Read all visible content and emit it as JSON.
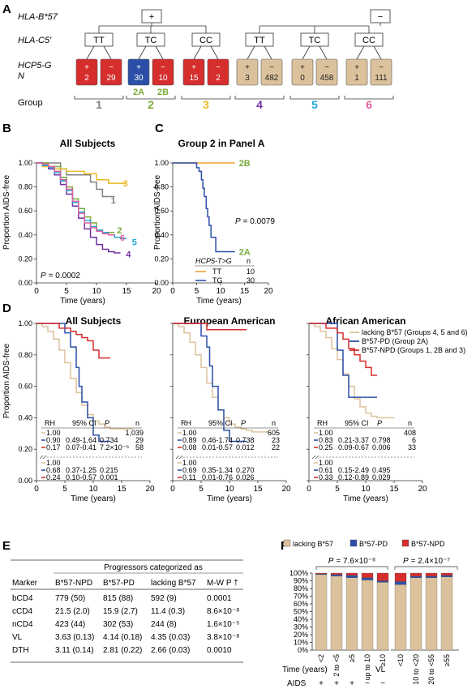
{
  "colors": {
    "red": "#d62d2d",
    "blue": "#2b4fa8",
    "tan": "#dcc29c",
    "gray": "#808080",
    "yellow": "#e8b923",
    "green": "#7aaa3a",
    "purple": "#7030a0",
    "pink": "#e05fa0",
    "cyan": "#20a8d8",
    "orange": "#f0a030"
  },
  "panel_a": {
    "label": "A",
    "hla_b57_label": "HLA-B*57",
    "hla_c5_label": "HLA-C5′",
    "hcp5_label": "HCP5-G",
    "n_label": "N",
    "group_label": "Group",
    "roots": [
      {
        "sign": "+"
      },
      {
        "sign": "−"
      }
    ],
    "c5": [
      "TT",
      "TC",
      "CC",
      "TT",
      "TC",
      "CC"
    ],
    "leaves": [
      {
        "sign": "+",
        "n": "2",
        "c": "red"
      },
      {
        "sign": "−",
        "n": "29",
        "c": "red"
      },
      {
        "sign": "+",
        "n": "30",
        "c": "blue"
      },
      {
        "sign": "−",
        "n": "10",
        "c": "red"
      },
      {
        "sign": "+",
        "n": "15",
        "c": "red"
      },
      {
        "sign": "−",
        "n": "2",
        "c": "red"
      },
      {
        "sign": "+",
        "n": "3",
        "c": "tan"
      },
      {
        "sign": "−",
        "n": "482",
        "c": "tan"
      },
      {
        "sign": "+",
        "n": "0",
        "c": "tan"
      },
      {
        "sign": "−",
        "n": "458",
        "c": "tan"
      },
      {
        "sign": "+",
        "n": "1",
        "c": "tan"
      },
      {
        "sign": "−",
        "n": "111",
        "c": "tan"
      }
    ],
    "sub2a": "2A",
    "sub2b": "2B",
    "groups": [
      {
        "n": "1",
        "c": "gray"
      },
      {
        "n": "2",
        "c": "green"
      },
      {
        "n": "3",
        "c": "yellow"
      },
      {
        "n": "4",
        "c": "purple"
      },
      {
        "n": "5",
        "c": "cyan"
      },
      {
        "n": "6",
        "c": "pink"
      }
    ]
  },
  "panel_b": {
    "label": "B",
    "title": "All Subjects",
    "ylabel": "Proportion AIDS-free",
    "xlabel": "Time (years)",
    "pval_label": "P",
    "pval_value": "= 0.0002",
    "xticks": [
      "0",
      "5",
      "10",
      "15",
      "20"
    ],
    "yticks": [
      "0.00",
      "0.20",
      "0.40",
      "0.60",
      "0.80",
      "1.00"
    ],
    "line_labels": [
      {
        "text": "3",
        "c": "yellow"
      },
      {
        "text": "1",
        "c": "gray"
      },
      {
        "text": "2",
        "c": "green"
      },
      {
        "text": "6",
        "c": "pink"
      },
      {
        "text": "5",
        "c": "cyan"
      },
      {
        "text": "4",
        "c": "purple"
      }
    ]
  },
  "panel_c": {
    "label": "C",
    "title": "Group 2 in Panel A",
    "ylabel": "Proportion AIDS-free",
    "xlabel": "Time (years)",
    "pval_label": "P",
    "pval_value": "= 0.0079",
    "xticks": [
      "0",
      "5",
      "10",
      "15",
      "20"
    ],
    "yticks": [
      "0.00",
      "0.20",
      "0.40",
      "0.60",
      "0.80",
      "1.00"
    ],
    "line_labels": [
      {
        "text": "2B",
        "c": "green"
      },
      {
        "text": "2A",
        "c": "green"
      }
    ],
    "legend_header": "HCP5-T>G",
    "legend_n": "n",
    "legend": [
      {
        "geno": "TT",
        "n": "10",
        "c": "orange"
      },
      {
        "geno": "TG",
        "n": "30",
        "c": "blue"
      }
    ]
  },
  "panel_d": {
    "label": "D",
    "ylabel": "Proportion AIDS-free",
    "xlabel": "Time (years)",
    "xticks": [
      "0",
      "5",
      "10",
      "15",
      "20"
    ],
    "yticks": [
      "0.00",
      "0.20",
      "0.40",
      "0.60",
      "0.80",
      "1.00"
    ],
    "legend": [
      {
        "text": "lacking B*57 (Groups 4, 5 and 6)",
        "c": "tan"
      },
      {
        "text": "B*57-PD (Group 2A)",
        "c": "blue"
      },
      {
        "text": "B*57-NPD (Groups 1, 2B and 3)",
        "c": "red"
      }
    ],
    "headers": [
      "RH",
      "95% CI",
      "P",
      "n"
    ],
    "subplots": [
      {
        "title": "All Subjects",
        "top": [
          {
            "rh": "1.00",
            "ci": "",
            "p": "",
            "n": "1,039"
          },
          {
            "rh": "0.90",
            "ci": "0.49-1.64",
            "p": "0.734",
            "n": "29"
          },
          {
            "rh": "0.17",
            "ci": "0.07-0.41",
            "p": "7.2×10⁻⁵",
            "n": "58"
          }
        ],
        "bot": [
          {
            "rh": "1.00",
            "ci": "",
            "p": ""
          },
          {
            "rh": "0.68",
            "ci": "0.37-1.25",
            "p": "0.215"
          },
          {
            "rh": "0.24",
            "ci": "0.10-0.57",
            "p": "0.001"
          }
        ]
      },
      {
        "title": "European American",
        "top": [
          {
            "rh": "1.00",
            "ci": "",
            "p": "",
            "n": "605"
          },
          {
            "rh": "0.89",
            "ci": "0.46-1.74",
            "p": "0.738",
            "n": "23"
          },
          {
            "rh": "0.08",
            "ci": "0.01-0.57",
            "p": "0.012",
            "n": "22"
          }
        ],
        "bot": [
          {
            "rh": "1.00",
            "ci": "",
            "p": ""
          },
          {
            "rh": "0.69",
            "ci": "0.35-1.34",
            "p": "0.270"
          },
          {
            "rh": "0.11",
            "ci": "0.01-0.76",
            "p": "0.026"
          }
        ]
      },
      {
        "title": "African American",
        "top": [
          {
            "rh": "1.00",
            "ci": "",
            "p": "",
            "n": "408"
          },
          {
            "rh": "0.83",
            "ci": "0.21-3.37",
            "p": "0.798",
            "n": "6"
          },
          {
            "rh": "0.25",
            "ci": "0.09-0.67",
            "p": "0.006",
            "n": "33"
          }
        ],
        "bot": [
          {
            "rh": "1.00",
            "ci": "",
            "p": ""
          },
          {
            "rh": "0.61",
            "ci": "0.15-2.49",
            "p": "0.495"
          },
          {
            "rh": "0.33",
            "ci": "0.12-0.89",
            "p": "0.029"
          }
        ]
      }
    ]
  },
  "panel_e": {
    "label": "E",
    "super_header": "Progressors categorized as",
    "headers": [
      "Marker",
      "B*57-NPD",
      "B*57-PD",
      "lacking B*57",
      "M-W P †"
    ],
    "rows": [
      [
        "bCD4",
        "779 (50)",
        "815 (88)",
        "592 (9)",
        "0.0001"
      ],
      [
        "cCD4",
        "21.5 (2.0)",
        "15.9 (2.7)",
        "11.4 (0.3)",
        "8.6×10⁻⁸"
      ],
      [
        "nCD4",
        "423 (44)",
        "302 (53)",
        "244 (8)",
        "1.6×10⁻⁵"
      ],
      [
        "VL",
        "3.63 (0.13)",
        "4.14 (0.18)",
        "4.35 (0.03)",
        "3.8×10⁻⁸"
      ],
      [
        "DTH",
        "3.11 (0.14)",
        "2.81 (0.22)",
        "2.66 (0.03)",
        "0.0010"
      ]
    ]
  },
  "panel_f": {
    "label": "F",
    "legend": [
      {
        "text": "lacking B*57",
        "c": "tan"
      },
      {
        "text": "B*57-PD",
        "c": "blue"
      },
      {
        "text": "B*57-NPD",
        "c": "red"
      }
    ],
    "p_left_label": "P",
    "p_left_value": "= 7.6×10⁻⁶",
    "p_right_label": "P",
    "p_right_value": "= 2.4×10⁻⁷",
    "yticks": [
      "0%",
      "10%",
      "20%",
      "30%",
      "40%",
      "50%",
      "60%",
      "70%",
      "80%",
      "90%",
      "100%"
    ],
    "time_label": "Time (years)",
    "vl_label": "VL",
    "aids_label": "AIDS",
    "left_groups": [
      {
        "cat": "<2",
        "aids": "+",
        "lacking": 98.0,
        "pd": 1.0,
        "npd": 1.0
      },
      {
        "cat": "2 to <5",
        "aids": "+",
        "lacking": 96.0,
        "pd": 2.0,
        "npd": 2.0
      },
      {
        "cat": "≥5",
        "aids": "+",
        "lacking": 94.0,
        "pd": 3.0,
        "npd": 3.0
      },
      {
        "cat": "up to 10",
        "aids": "−",
        "lacking": 91.0,
        "pd": 3.0,
        "npd": 6.0
      },
      {
        "cat": "≥10",
        "aids": "−",
        "lacking": 88.0,
        "pd": 2.0,
        "npd": 10.0
      }
    ],
    "right_groups": [
      {
        "cat": "<10",
        "lacking": 85.0,
        "pd": 4.0,
        "npd": 11.0
      },
      {
        "cat": "10 to <20",
        "lacking": 94.0,
        "pd": 2.0,
        "npd": 4.0
      },
      {
        "cat": "20 to <55",
        "lacking": 94.0,
        "pd": 2.0,
        "npd": 4.0
      },
      {
        "cat": "≥55",
        "lacking": 95.0,
        "pd": 2.0,
        "npd": 3.0
      }
    ]
  },
  "chart_data": [
    {
      "type": "line",
      "panel": "B",
      "title": "All Subjects",
      "xlabel": "Time (years)",
      "ylabel": "Proportion AIDS-free",
      "xlim": [
        0,
        20
      ],
      "ylim": [
        0,
        1
      ],
      "series": [
        {
          "name": "1",
          "x": [
            0,
            2,
            4,
            5,
            7,
            9,
            10,
            11,
            12,
            13
          ],
          "y": [
            1.0,
            1.0,
            0.95,
            0.9,
            0.9,
            0.84,
            0.78,
            0.72,
            0.72,
            0.72
          ]
        },
        {
          "name": "2",
          "x": [
            0,
            2,
            4,
            5,
            6,
            7,
            8,
            9,
            10,
            11,
            12,
            13
          ],
          "y": [
            1.0,
            0.97,
            0.88,
            0.8,
            0.7,
            0.62,
            0.55,
            0.5,
            0.44,
            0.42,
            0.42,
            0.42
          ]
        },
        {
          "name": "3",
          "x": [
            0,
            1,
            3,
            5,
            8,
            10,
            12,
            15
          ],
          "y": [
            1.0,
            0.97,
            0.95,
            0.93,
            0.91,
            0.86,
            0.83,
            0.83
          ]
        },
        {
          "name": "4",
          "x": [
            0,
            1,
            2,
            3,
            4,
            5,
            6,
            7,
            8,
            9,
            10,
            11,
            12,
            13,
            14
          ],
          "y": [
            1.0,
            0.98,
            0.95,
            0.9,
            0.82,
            0.74,
            0.64,
            0.54,
            0.45,
            0.38,
            0.32,
            0.28,
            0.26,
            0.25,
            0.25
          ]
        },
        {
          "name": "5",
          "x": [
            0,
            1,
            2,
            3,
            4,
            5,
            6,
            7,
            8,
            9,
            10,
            11,
            12,
            13,
            14,
            15
          ],
          "y": [
            1.0,
            0.98,
            0.96,
            0.92,
            0.85,
            0.77,
            0.67,
            0.59,
            0.52,
            0.47,
            0.44,
            0.42,
            0.4,
            0.38,
            0.37,
            0.37
          ]
        },
        {
          "name": "6",
          "x": [
            0,
            1,
            2,
            3,
            4,
            5,
            6,
            7,
            8,
            9,
            10,
            11,
            12,
            13
          ],
          "y": [
            1.0,
            0.99,
            0.97,
            0.93,
            0.86,
            0.78,
            0.68,
            0.58,
            0.5,
            0.46,
            0.43,
            0.41,
            0.4,
            0.4
          ]
        }
      ]
    },
    {
      "type": "line",
      "panel": "C",
      "title": "Group 2 in Panel A",
      "xlabel": "Time (years)",
      "ylabel": "Proportion AIDS-free",
      "xlim": [
        0,
        20
      ],
      "ylim": [
        0,
        1
      ],
      "series": [
        {
          "name": "TT",
          "x": [
            0,
            13
          ],
          "y": [
            1.0,
            1.0
          ]
        },
        {
          "name": "TG",
          "x": [
            0,
            4.5,
            5,
            5.5,
            6,
            6.3,
            6.6,
            7,
            7.3,
            7.6,
            8,
            9,
            10,
            13
          ],
          "y": [
            1.0,
            1.0,
            0.96,
            0.93,
            0.86,
            0.79,
            0.72,
            0.62,
            0.55,
            0.48,
            0.38,
            0.26,
            0.26,
            0.26
          ]
        }
      ]
    },
    {
      "type": "line",
      "panel": "D",
      "title": "All Subjects",
      "xlabel": "Time (years)",
      "ylabel": "Proportion AIDS-free",
      "xlim": [
        0,
        20
      ],
      "ylim": [
        0,
        1
      ],
      "series": [
        {
          "name": "lacking B*57",
          "x": [
            0,
            1,
            2,
            3,
            4,
            5,
            6,
            7,
            8,
            9,
            10,
            11,
            12,
            13,
            14,
            15,
            16,
            17
          ],
          "y": [
            1.0,
            0.98,
            0.95,
            0.9,
            0.83,
            0.75,
            0.65,
            0.56,
            0.48,
            0.42,
            0.38,
            0.36,
            0.34,
            0.33,
            0.33,
            0.33,
            0.33,
            0.33
          ]
        },
        {
          "name": "B*57-PD",
          "x": [
            0,
            4.5,
            5,
            6,
            7,
            7.5,
            8,
            9,
            10,
            11,
            13
          ],
          "y": [
            1.0,
            1.0,
            0.94,
            0.85,
            0.72,
            0.6,
            0.5,
            0.4,
            0.29,
            0.25,
            0.25
          ]
        },
        {
          "name": "B*57-NPD",
          "x": [
            0,
            2,
            4,
            6,
            7,
            8,
            9,
            10,
            11,
            13
          ],
          "y": [
            1.0,
            1.0,
            0.97,
            0.95,
            0.93,
            0.91,
            0.89,
            0.83,
            0.78,
            0.78
          ]
        }
      ]
    },
    {
      "type": "line",
      "panel": "D",
      "title": "European American",
      "xlabel": "Time (years)",
      "xlim": [
        0,
        20
      ],
      "ylim": [
        0,
        1
      ],
      "series": [
        {
          "name": "lacking B*57",
          "x": [
            0,
            1,
            2,
            3,
            4,
            5,
            6,
            7,
            8,
            9,
            10,
            11,
            12,
            13,
            14,
            15,
            16,
            17
          ],
          "y": [
            1.0,
            0.98,
            0.94,
            0.88,
            0.8,
            0.72,
            0.62,
            0.53,
            0.45,
            0.4,
            0.36,
            0.34,
            0.33,
            0.32,
            0.31,
            0.31,
            0.31,
            0.31
          ]
        },
        {
          "name": "B*57-PD",
          "x": [
            0,
            4,
            5,
            6,
            6.5,
            7,
            8,
            9,
            10,
            13
          ],
          "y": [
            1.0,
            1.0,
            0.92,
            0.85,
            0.73,
            0.6,
            0.45,
            0.32,
            0.25,
            0.25
          ]
        },
        {
          "name": "B*57-NPD",
          "x": [
            0,
            4,
            6,
            8,
            10,
            13
          ],
          "y": [
            1.0,
            1.0,
            0.96,
            0.96,
            0.96,
            0.96
          ]
        }
      ]
    },
    {
      "type": "line",
      "panel": "D",
      "title": "African American",
      "xlabel": "Time (years)",
      "xlim": [
        0,
        20
      ],
      "ylim": [
        0,
        1
      ],
      "series": [
        {
          "name": "lacking B*57",
          "x": [
            0,
            1,
            2,
            3,
            4,
            5,
            6,
            7,
            8,
            9,
            10,
            11,
            12,
            13,
            14,
            15
          ],
          "y": [
            1.0,
            0.98,
            0.95,
            0.91,
            0.84,
            0.77,
            0.68,
            0.6,
            0.52,
            0.47,
            0.43,
            0.41,
            0.4,
            0.4,
            0.4,
            0.4
          ]
        },
        {
          "name": "B*57-PD",
          "x": [
            0,
            5,
            6,
            7,
            8,
            12
          ],
          "y": [
            1.0,
            0.83,
            0.67,
            0.53,
            0.53,
            0.53
          ]
        },
        {
          "name": "B*57-NPD",
          "x": [
            0,
            3,
            5,
            6,
            7,
            8,
            9,
            10,
            11,
            12
          ],
          "y": [
            1.0,
            0.97,
            0.94,
            0.9,
            0.84,
            0.8,
            0.76,
            0.72,
            0.67,
            0.67
          ]
        }
      ]
    },
    {
      "type": "bar",
      "panel": "F",
      "stacked": true,
      "ylim": [
        0,
        100
      ],
      "categories": [
        "<2",
        "2 to <5",
        "≥5",
        "up to 10",
        "≥10",
        "<10",
        "10 to <20",
        "20 to <55",
        "≥55"
      ],
      "series": [
        {
          "name": "lacking B*57",
          "values": [
            98,
            96,
            94,
            91,
            88,
            85,
            94,
            94,
            95
          ]
        },
        {
          "name": "B*57-PD",
          "values": [
            1,
            2,
            3,
            3,
            2,
            4,
            2,
            2,
            2
          ]
        },
        {
          "name": "B*57-NPD",
          "values": [
            1,
            2,
            3,
            6,
            10,
            11,
            4,
            4,
            3
          ]
        }
      ]
    }
  ]
}
